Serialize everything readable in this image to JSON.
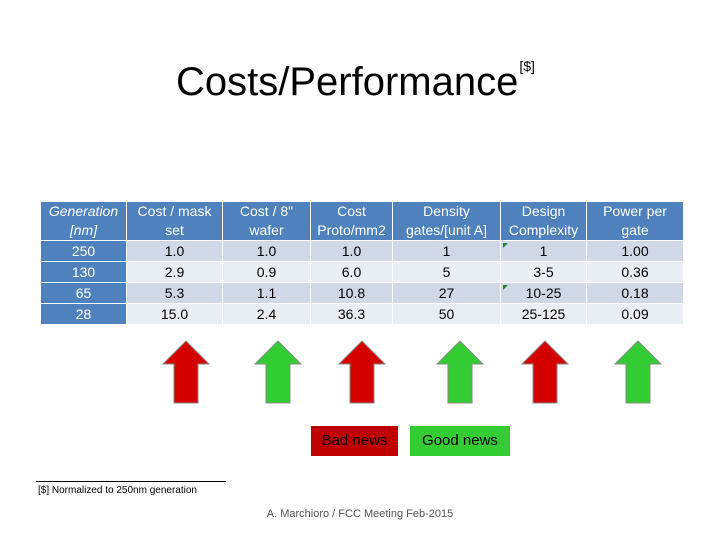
{
  "slide": {
    "title": "Costs/Performance",
    "title_ref": "[$]"
  },
  "table": {
    "headers": [
      [
        "Generation",
        "[nm]"
      ],
      [
        "Cost / mask",
        "set"
      ],
      [
        "Cost / 8\"",
        "wafer"
      ],
      [
        "Cost",
        "Proto/mm2"
      ],
      [
        "Density",
        "gates/[unit A]"
      ],
      [
        "Design",
        "Complexity"
      ],
      [
        "Power per",
        "gate"
      ]
    ],
    "rows": [
      [
        "250",
        "1.0",
        "1.0",
        "1.0",
        "1",
        "1",
        "1.00"
      ],
      [
        "130",
        "2.9",
        "0.9",
        "6.0",
        "5",
        "3-5",
        "0.36"
      ],
      [
        "65",
        "5.3",
        "1.1",
        "10.8",
        "27",
        "10-25",
        "0.18"
      ],
      [
        "28",
        "15.0",
        "2.4",
        "36.3",
        "50",
        "25-125",
        "0.09"
      ]
    ]
  },
  "arrows": [
    {
      "column": "Cost / mask set",
      "meaning": "bad",
      "color": "#d40000"
    },
    {
      "column": "Cost / 8\" wafer",
      "meaning": "good",
      "color": "#33cc33"
    },
    {
      "column": "Cost Proto/mm2",
      "meaning": "bad",
      "color": "#d40000"
    },
    {
      "column": "Density",
      "meaning": "good",
      "color": "#33cc33"
    },
    {
      "column": "Design Complexity",
      "meaning": "bad",
      "color": "#d40000"
    },
    {
      "column": "Power per gate",
      "meaning": "good",
      "color": "#33cc33"
    }
  ],
  "legend": {
    "bad_label": "Bad news",
    "good_label": "Good news"
  },
  "footnote": "[$] Normalized to 250nm generation",
  "footer": "A. Marchioro / FCC Meeting Feb-2015",
  "colors": {
    "header_blue": "#4f81bd",
    "row_light": "#d0d8e8",
    "row_lighter": "#e9edf4",
    "bad_red": "#c00000",
    "good_green": "#33cc33"
  }
}
